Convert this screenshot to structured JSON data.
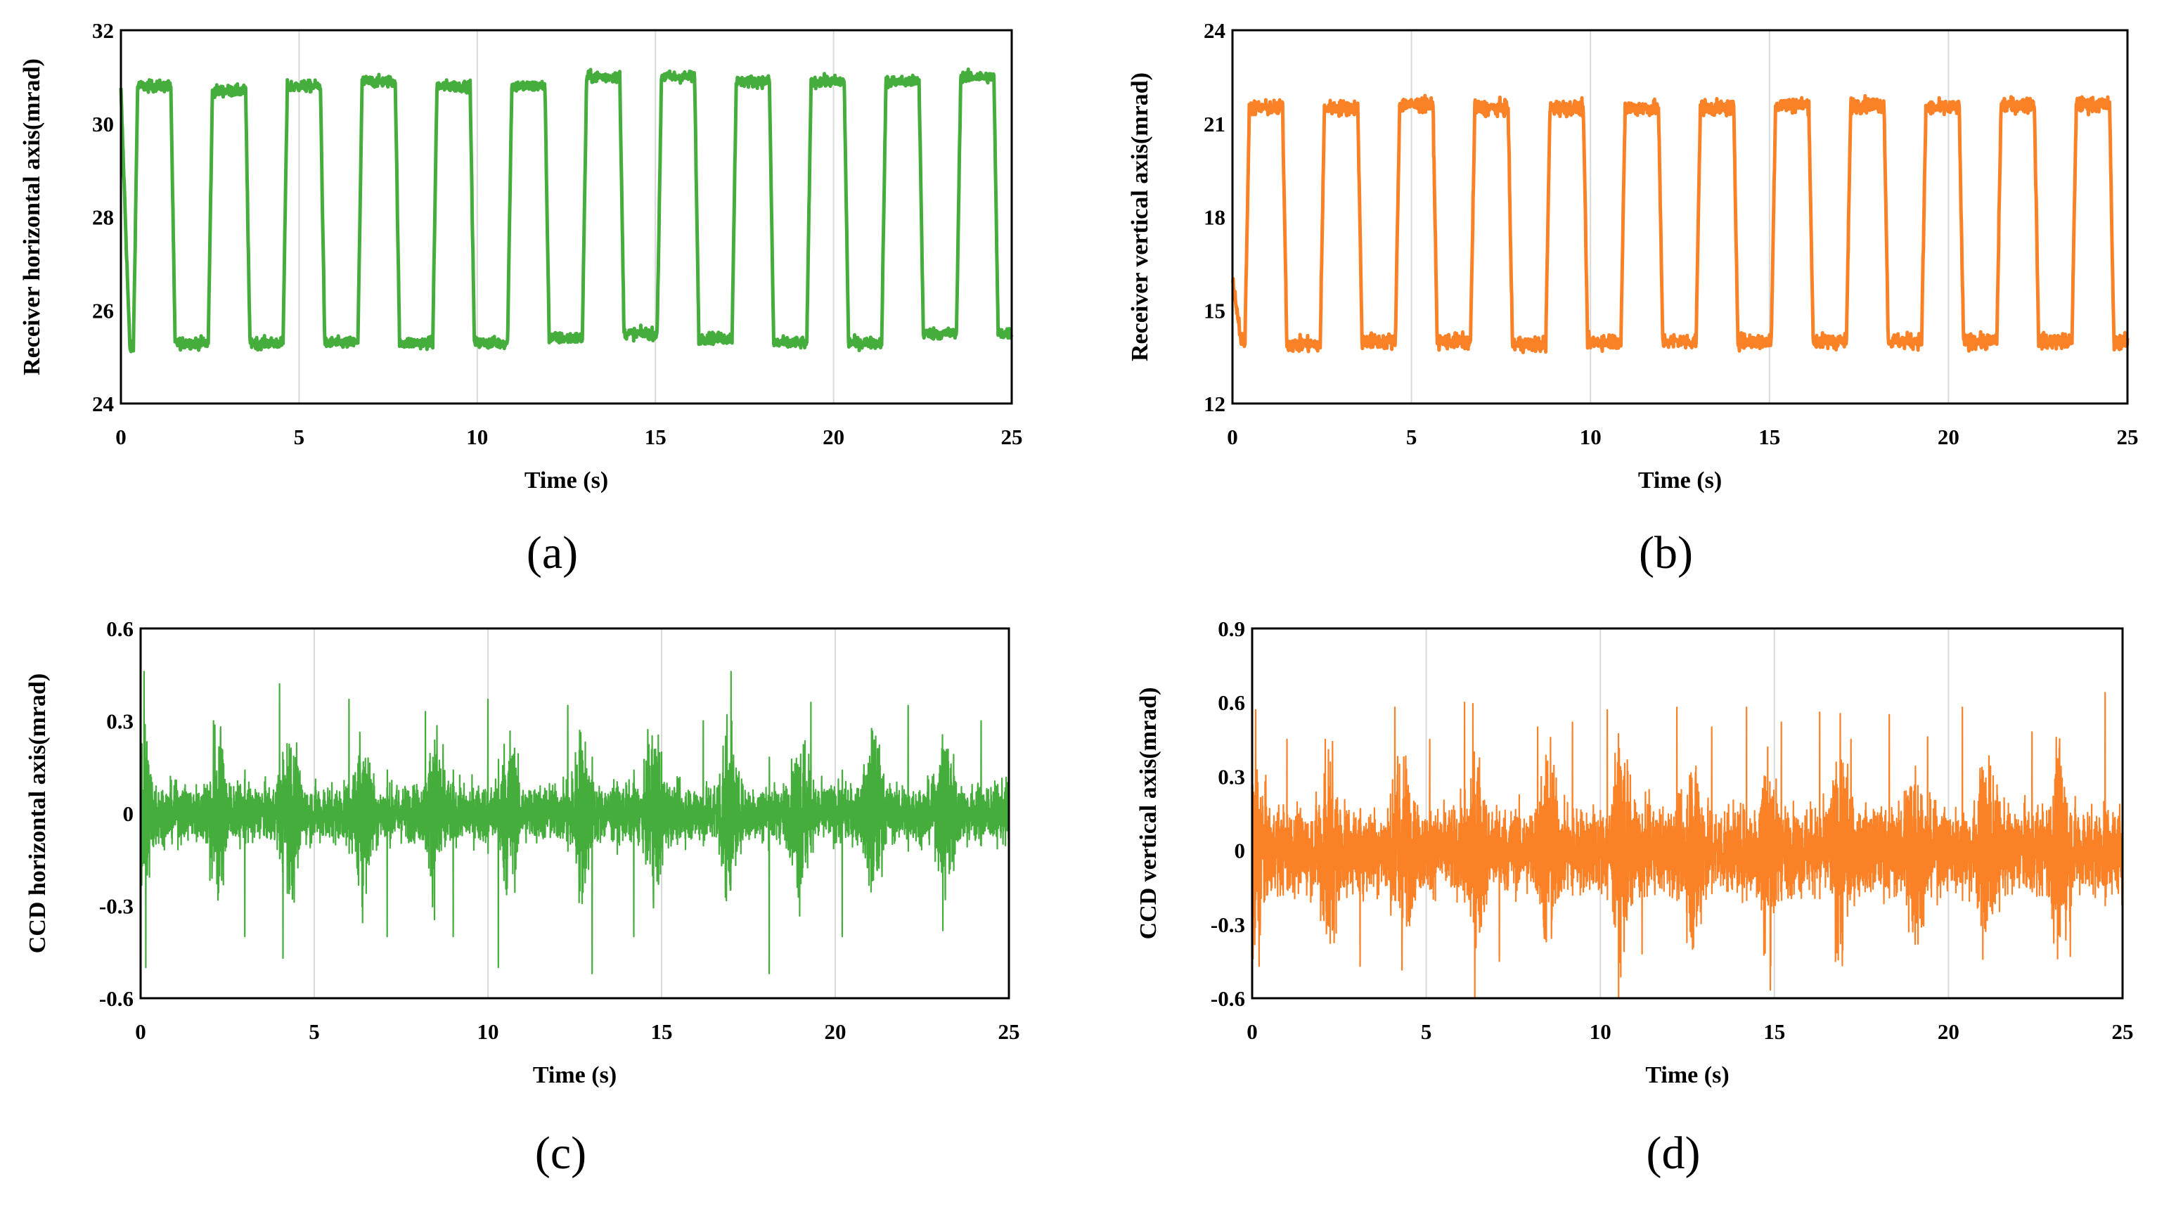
{
  "chart_data": [
    {
      "type": "line",
      "panel_label": "(a)",
      "xlabel": "Time (s)",
      "ylabel": "Receiver horizontal axis(mrad)",
      "xlim": [
        0,
        25
      ],
      "ylim": [
        24,
        32
      ],
      "xticks": [
        0,
        5,
        10,
        15,
        20,
        25
      ],
      "yticks": [
        24,
        26,
        28,
        30,
        32
      ],
      "grid": true,
      "color": "#44ad3c",
      "series": [
        {
          "name": "Receiver horizontal axis",
          "signal": "square_wave",
          "period_s": 2.1,
          "duty_cycle": 0.5,
          "high_plateaus": [
            30.8,
            30.7,
            30.8,
            30.9,
            30.8,
            30.8,
            31.0,
            31.0,
            30.9,
            30.9,
            30.9,
            31.0
          ],
          "low_plateaus": [
            25.2,
            25.3,
            25.3,
            25.3,
            25.3,
            25.3,
            25.4,
            25.5,
            25.4,
            25.3,
            25.3,
            25.5
          ],
          "start_value": 30.7,
          "noise_mrad": 0.06
        }
      ]
    },
    {
      "type": "line",
      "panel_label": "(b)",
      "xlabel": "Time (s)",
      "ylabel": "Receiver vertical axis(mrad)",
      "xlim": [
        0,
        25
      ],
      "ylim": [
        12,
        24
      ],
      "xticks": [
        0,
        5,
        10,
        15,
        20,
        25
      ],
      "yticks": [
        12,
        15,
        18,
        21,
        24
      ],
      "grid": true,
      "color": "#fb8127",
      "series": [
        {
          "name": "Receiver vertical axis",
          "signal": "square_wave",
          "period_s": 2.1,
          "duty_cycle": 0.5,
          "high_plateaus": [
            21.5,
            21.5,
            21.6,
            21.5,
            21.5,
            21.5,
            21.5,
            21.6,
            21.6,
            21.5,
            21.6,
            21.6
          ],
          "low_plateaus": [
            14.0,
            13.9,
            14.0,
            14.0,
            13.9,
            14.0,
            14.0,
            14.0,
            14.0,
            14.0,
            14.0,
            14.0
          ],
          "start_value": 16.0,
          "noise_mrad": 0.12
        }
      ]
    },
    {
      "type": "line",
      "panel_label": "(c)",
      "xlabel": "Time (s)",
      "ylabel": "CCD horizontal axis(mrad)",
      "xlim": [
        0,
        25
      ],
      "ylim": [
        -0.6,
        0.6
      ],
      "xticks": [
        0,
        5,
        10,
        15,
        20,
        25
      ],
      "yticks": [
        -0.6,
        -0.3,
        0,
        0.3,
        0.6
      ],
      "grid": true,
      "color": "#44ad3c",
      "series": [
        {
          "name": "CCD horizontal axis",
          "signal": "noise",
          "base_amplitude": 0.08,
          "burst_period_s": 2.1,
          "burst_amplitude": 0.18,
          "spikes": [
            [
              0.1,
              0.46
            ],
            [
              0.15,
              -0.5
            ],
            [
              2.1,
              0.3
            ],
            [
              3.0,
              -0.4
            ],
            [
              4.0,
              0.42
            ],
            [
              4.1,
              -0.47
            ],
            [
              6.0,
              0.37
            ],
            [
              7.1,
              -0.4
            ],
            [
              8.2,
              0.33
            ],
            [
              9.0,
              -0.4
            ],
            [
              10.0,
              0.37
            ],
            [
              10.3,
              -0.5
            ],
            [
              12.3,
              0.35
            ],
            [
              13.0,
              -0.52
            ],
            [
              14.2,
              -0.4
            ],
            [
              16.2,
              0.3
            ],
            [
              17.0,
              0.46
            ],
            [
              18.1,
              -0.52
            ],
            [
              19.3,
              0.36
            ],
            [
              20.2,
              -0.4
            ],
            [
              22.1,
              0.35
            ],
            [
              23.1,
              -0.38
            ],
            [
              24.2,
              0.3
            ]
          ]
        }
      ]
    },
    {
      "type": "line",
      "panel_label": "(d)",
      "xlabel": "Time (s)",
      "ylabel": "CCD vertical axis(mrad)",
      "xlim": [
        0,
        25
      ],
      "ylim": [
        -0.6,
        0.9
      ],
      "xticks": [
        0,
        5,
        10,
        15,
        20,
        25
      ],
      "yticks": [
        -0.6,
        -0.3,
        0,
        0.3,
        0.6,
        0.9
      ],
      "grid": true,
      "color": "#fb8127",
      "series": [
        {
          "name": "CCD vertical axis",
          "signal": "noise",
          "base_amplitude": 0.15,
          "burst_period_s": 2.1,
          "burst_amplitude": 0.25,
          "spikes": [
            [
              0.1,
              0.57
            ],
            [
              0.2,
              -0.47
            ],
            [
              1.0,
              0.45
            ],
            [
              2.1,
              0.45
            ],
            [
              3.1,
              -0.47
            ],
            [
              4.1,
              0.58
            ],
            [
              5.1,
              0.45
            ],
            [
              6.1,
              0.6
            ],
            [
              7.1,
              -0.45
            ],
            [
              8.2,
              0.5
            ],
            [
              9.2,
              0.52
            ],
            [
              10.2,
              0.57
            ],
            [
              11.2,
              -0.42
            ],
            [
              12.2,
              0.58
            ],
            [
              13.2,
              0.5
            ],
            [
              14.2,
              0.58
            ],
            [
              15.2,
              0.52
            ],
            [
              16.3,
              0.56
            ],
            [
              17.2,
              0.45
            ],
            [
              18.3,
              0.55
            ],
            [
              19.4,
              0.46
            ],
            [
              20.4,
              0.58
            ],
            [
              22.4,
              0.48
            ],
            [
              23.5,
              -0.43
            ],
            [
              24.5,
              0.64
            ]
          ]
        }
      ]
    }
  ]
}
